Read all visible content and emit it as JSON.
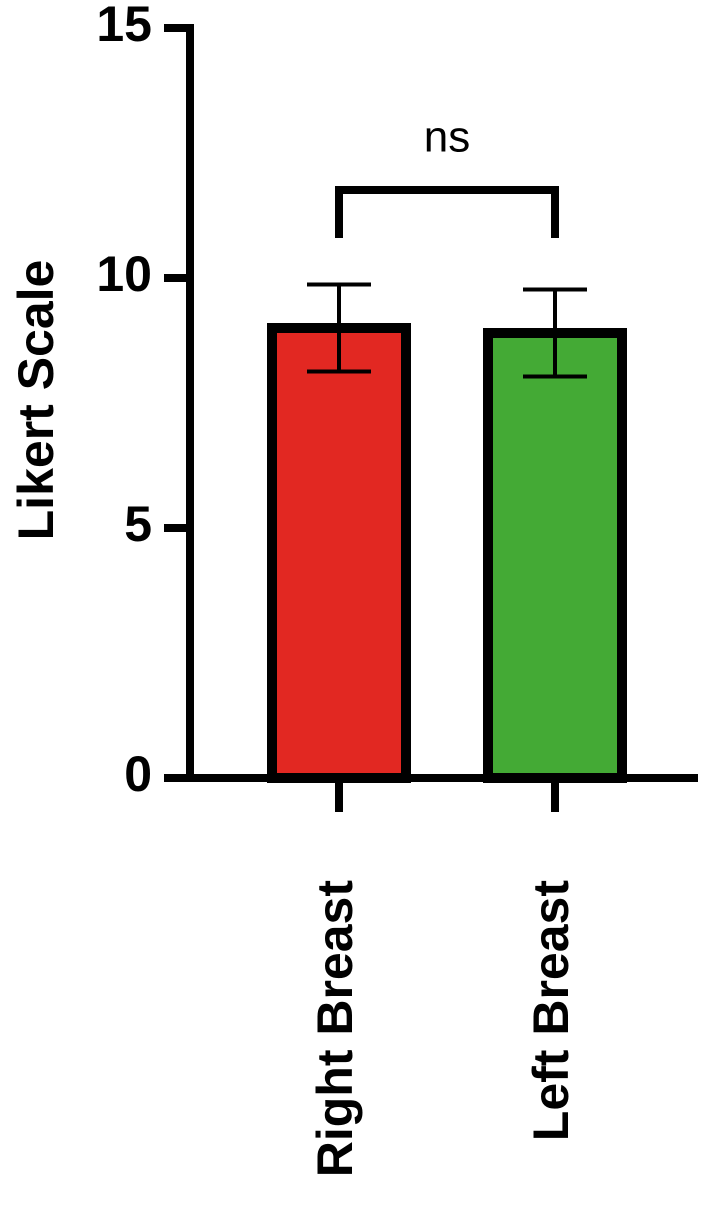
{
  "chart_data": {
    "type": "bar",
    "y_label": "Likert Scale",
    "categories": [
      "Right Breast",
      "Left Breast"
    ],
    "values": [
      9.0,
      8.9
    ],
    "errors": [
      0.87,
      0.87
    ],
    "colors": [
      "#e22822",
      "#44aa35"
    ],
    "ylim": [
      0,
      15
    ],
    "yticks": [
      0,
      5,
      10,
      15
    ],
    "annotation": "ns"
  }
}
